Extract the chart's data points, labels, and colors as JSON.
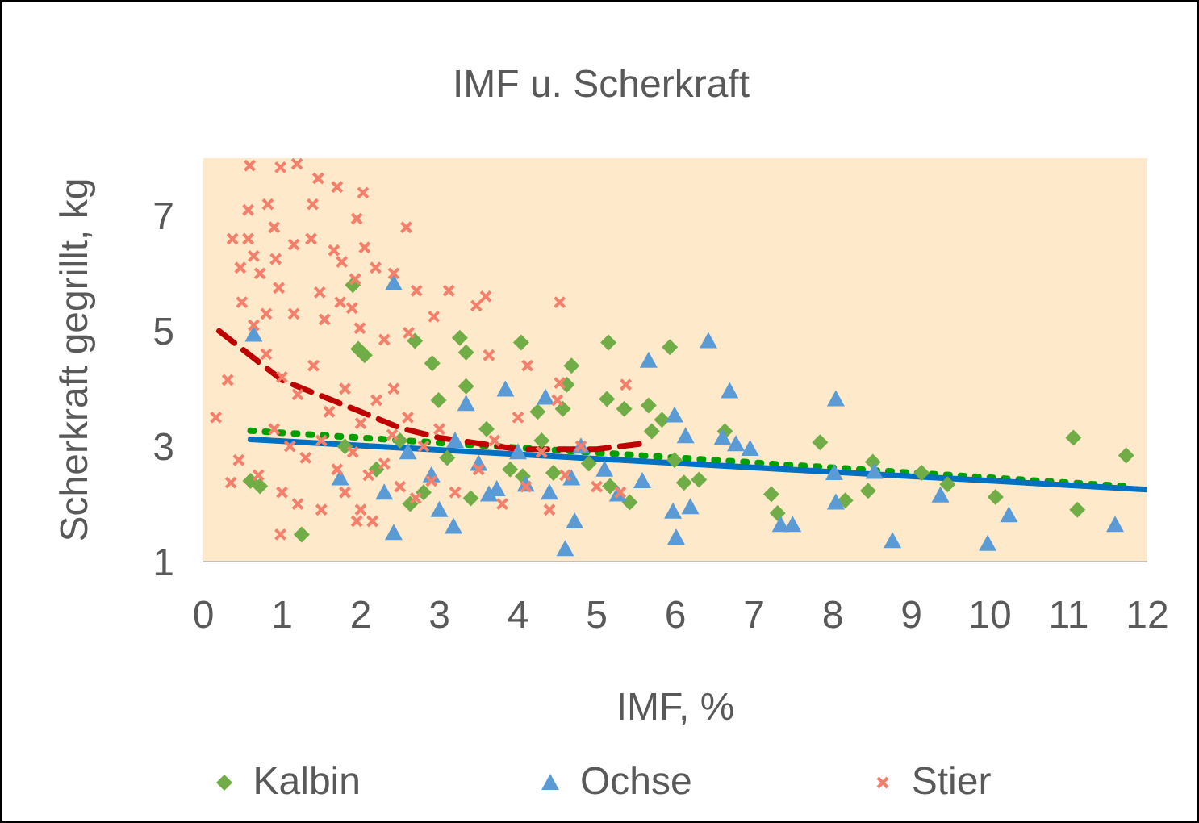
{
  "chart_data": {
    "type": "scatter",
    "title": "IMF u. Scherkraft",
    "xlabel": "IMF, %",
    "ylabel": "Scherkraft gegrillt, kg",
    "xlim": [
      0,
      12
    ],
    "xticks": [
      0,
      1,
      2,
      3,
      4,
      5,
      6,
      7,
      8,
      9,
      10,
      11,
      12
    ],
    "ylim": [
      1,
      8
    ],
    "yticks": [
      1,
      3,
      5,
      7
    ],
    "grid": false,
    "legend": "bottom",
    "series": [
      {
        "name": "Kalbin",
        "type": "scatter",
        "marker": "diamond",
        "color": "#70ad47",
        "x": [
          1.9,
          1.97,
          2.05,
          2.69,
          2.91,
          3.26,
          3.34,
          3.34,
          2.99,
          0.72,
          1.25,
          2.63,
          4.04,
          5.15,
          5.93,
          4.68,
          4.62,
          5.13,
          5.35,
          5.66,
          4.25,
          4.57,
          5.83,
          5.7,
          6.63,
          7.84,
          5.99,
          6.3,
          6.11,
          5.42,
          5.17,
          7.22,
          7.3,
          4.45,
          4.06,
          11.06,
          11.73,
          8.51,
          8.45,
          8.16,
          10.07,
          11.11,
          9.13,
          9.46,
          2.5,
          3.1,
          3.6,
          3.9,
          2.2,
          2.8,
          3.4,
          1.8,
          4.3,
          4.9,
          0.6
        ],
        "values": [
          5.8,
          4.69,
          4.58,
          4.83,
          4.44,
          4.88,
          4.63,
          4.04,
          3.8,
          2.31,
          1.47,
          2.0,
          4.8,
          4.8,
          4.72,
          4.4,
          4.07,
          3.82,
          3.65,
          3.71,
          3.6,
          3.65,
          3.46,
          3.26,
          3.26,
          3.07,
          2.76,
          2.42,
          2.37,
          2.03,
          2.31,
          2.17,
          1.84,
          2.54,
          2.48,
          3.15,
          2.84,
          2.73,
          2.23,
          2.06,
          2.12,
          1.9,
          2.54,
          2.34,
          3.1,
          2.8,
          3.3,
          2.6,
          2.6,
          2.2,
          2.1,
          3.0,
          3.1,
          2.7,
          2.4
        ]
      },
      {
        "name": "Ochse",
        "type": "scatter",
        "marker": "triangle",
        "color": "#5b9bd5",
        "x": [
          2.42,
          0.64,
          3.84,
          2.42,
          3.18,
          1.74,
          3.34,
          3.63,
          6.42,
          5.66,
          6.69,
          8.04,
          5.99,
          4.35,
          6.13,
          6.6,
          6.77,
          6.95,
          4.6,
          6.01,
          4.72,
          5.97,
          6.19,
          7.34,
          7.49,
          5.58,
          5.27,
          4.68,
          4.1,
          3.73,
          8.04,
          8.53,
          8.02,
          8.76,
          9.97,
          10.24,
          9.37,
          11.59,
          2.6,
          2.9,
          3.2,
          3.5,
          4.0,
          4.4,
          3.0,
          2.3,
          4.8,
          5.1
        ],
        "values": [
          5.83,
          4.94,
          3.99,
          1.5,
          1.61,
          2.45,
          3.74,
          2.17,
          4.83,
          4.49,
          3.96,
          3.82,
          3.54,
          3.85,
          3.18,
          3.15,
          3.04,
          2.96,
          1.22,
          1.42,
          1.7,
          1.87,
          1.95,
          1.64,
          1.64,
          2.4,
          2.17,
          2.45,
          2.34,
          2.26,
          2.03,
          2.56,
          2.54,
          1.36,
          1.31,
          1.81,
          2.15,
          1.64,
          2.9,
          2.5,
          3.1,
          2.7,
          2.9,
          2.2,
          1.9,
          2.2,
          3.0,
          2.6
        ]
      },
      {
        "name": "Stier",
        "type": "scatter",
        "marker": "cross",
        "color": "#f4806c",
        "x": [
          0.59,
          0.98,
          1.19,
          1.46,
          1.7,
          2.03,
          0.82,
          0.57,
          1.39,
          1.95,
          0.9,
          0.37,
          0.57,
          1.15,
          1.37,
          2.58,
          1.66,
          2.05,
          0.64,
          0.92,
          2.19,
          1.76,
          0.47,
          0.72,
          0.96,
          1.48,
          1.93,
          2.42,
          2.71,
          3.12,
          3.59,
          3.47,
          0.49,
          1.74,
          1.89,
          0.8,
          1.15,
          1.54,
          2.93,
          0.64,
          1.99,
          2.61,
          2.3,
          0.31,
          0.16,
          0.45,
          0.35,
          0.98,
          1.95,
          2.15,
          3.63,
          2.42,
          4.53,
          4.12,
          5.37,
          4.53,
          0.8,
          1.0,
          1.2,
          1.4,
          1.6,
          1.8,
          2.0,
          2.2,
          2.4,
          2.6,
          2.8,
          3.0,
          0.9,
          1.1,
          1.3,
          1.5,
          1.7,
          1.9,
          2.1,
          2.3,
          2.5,
          2.7,
          0.7,
          1.0,
          1.2,
          1.5,
          1.8,
          2.0,
          2.9,
          3.2,
          3.5,
          3.8,
          4.1,
          4.4,
          4.6,
          5.0,
          5.3,
          3.7,
          4.0,
          4.3,
          4.5,
          4.8
        ],
        "values": [
          7.87,
          7.84,
          7.9,
          7.65,
          7.5,
          7.4,
          7.2,
          7.1,
          7.2,
          6.95,
          6.8,
          6.6,
          6.6,
          6.5,
          6.6,
          6.8,
          6.4,
          6.45,
          6.3,
          6.25,
          6.1,
          6.2,
          6.1,
          6.0,
          5.75,
          5.67,
          5.9,
          6.0,
          5.7,
          5.7,
          5.6,
          5.44,
          5.5,
          5.5,
          5.4,
          5.3,
          5.3,
          5.2,
          5.25,
          5.1,
          5.05,
          4.97,
          4.85,
          4.15,
          3.5,
          2.76,
          2.37,
          1.47,
          1.7,
          1.7,
          4.58,
          4.0,
          5.5,
          4.4,
          4.07,
          4.1,
          4.6,
          4.2,
          3.9,
          4.4,
          3.6,
          4.0,
          3.4,
          3.8,
          3.2,
          3.5,
          3.0,
          3.3,
          3.3,
          3.0,
          2.8,
          3.1,
          2.6,
          2.9,
          2.5,
          2.7,
          2.3,
          2.1,
          2.5,
          2.2,
          2.0,
          1.9,
          2.2,
          1.9,
          2.4,
          2.2,
          2.6,
          2.0,
          2.3,
          1.9,
          2.5,
          2.3,
          2.2,
          3.1,
          3.5,
          2.9,
          3.8,
          3.0
        ]
      },
      {
        "type": "line",
        "line_style": "dotted",
        "color": "#00a000",
        "x": [
          0.6,
          11.8
        ],
        "values": [
          3.27,
          2.3
        ]
      },
      {
        "type": "line",
        "line_style": "solid",
        "color": "#0070c0",
        "x": [
          0.6,
          12
        ],
        "values": [
          3.12,
          2.25
        ]
      },
      {
        "type": "line",
        "line_style": "dashed",
        "color": "#c00000",
        "x": [
          0.2,
          1,
          2,
          2.5,
          3,
          4,
          5,
          5.6
        ],
        "values": [
          5.0,
          4.15,
          3.6,
          3.32,
          3.15,
          2.95,
          2.95,
          3.05
        ]
      }
    ]
  }
}
